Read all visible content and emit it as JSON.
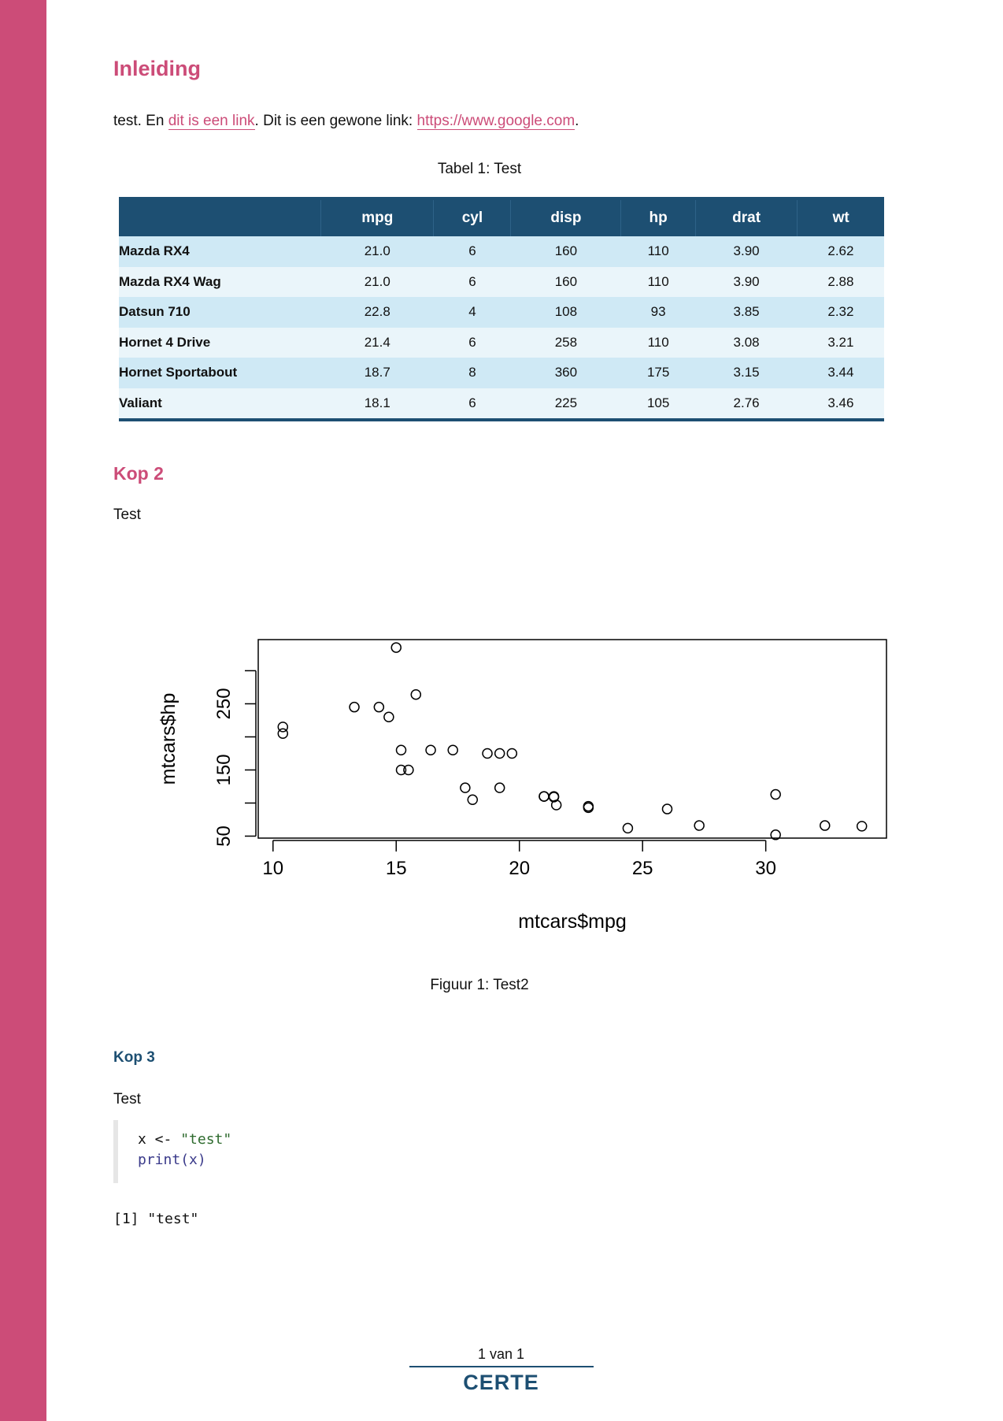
{
  "colors": {
    "accent": "#cc4c78",
    "navy": "#1d4f72",
    "row_light": "#cfe9f5",
    "row_alt": "#eaf5fa"
  },
  "intro": {
    "heading": "Inleiding",
    "text_before": "test. En ",
    "link1_text": "dit is een link",
    "text_middle": ". Dit is een gewone link: ",
    "link2_text": "https://www.google.com",
    "text_after": "."
  },
  "table": {
    "caption": "Tabel 1: Test",
    "headers": [
      "",
      "mpg",
      "cyl",
      "disp",
      "hp",
      "drat",
      "wt"
    ],
    "rows": [
      [
        "Mazda RX4",
        "21.0",
        "6",
        "160",
        "110",
        "3.90",
        "2.62"
      ],
      [
        "Mazda RX4 Wag",
        "21.0",
        "6",
        "160",
        "110",
        "3.90",
        "2.88"
      ],
      [
        "Datsun 710",
        "22.8",
        "4",
        "108",
        "93",
        "3.85",
        "2.32"
      ],
      [
        "Hornet 4 Drive",
        "21.4",
        "6",
        "258",
        "110",
        "3.08",
        "3.21"
      ],
      [
        "Hornet Sportabout",
        "18.7",
        "8",
        "360",
        "175",
        "3.15",
        "3.44"
      ],
      [
        "Valiant",
        "18.1",
        "6",
        "225",
        "105",
        "2.76",
        "3.46"
      ]
    ]
  },
  "kop2": {
    "heading": "Kop 2",
    "text": "Test"
  },
  "chart_data": {
    "type": "scatter",
    "xlabel": "mtcars$mpg",
    "ylabel": "mtcars$hp",
    "xlim": [
      9.4,
      34.9
    ],
    "ylim": [
      47,
      347
    ],
    "xticks": [
      10,
      15,
      20,
      25,
      30
    ],
    "yticks": [
      50,
      150,
      250
    ],
    "grid": false,
    "points": [
      [
        21.0,
        110
      ],
      [
        21.0,
        110
      ],
      [
        22.8,
        93
      ],
      [
        21.4,
        110
      ],
      [
        18.7,
        175
      ],
      [
        18.1,
        105
      ],
      [
        14.3,
        245
      ],
      [
        24.4,
        62
      ],
      [
        22.8,
        95
      ],
      [
        19.2,
        123
      ],
      [
        17.8,
        123
      ],
      [
        16.4,
        180
      ],
      [
        17.3,
        180
      ],
      [
        15.2,
        180
      ],
      [
        10.4,
        205
      ],
      [
        10.4,
        215
      ],
      [
        14.7,
        230
      ],
      [
        32.4,
        66
      ],
      [
        30.4,
        52
      ],
      [
        33.9,
        65
      ],
      [
        21.5,
        97
      ],
      [
        15.5,
        150
      ],
      [
        15.2,
        150
      ],
      [
        13.3,
        245
      ],
      [
        19.2,
        175
      ],
      [
        27.3,
        66
      ],
      [
        26.0,
        91
      ],
      [
        30.4,
        113
      ],
      [
        15.8,
        264
      ],
      [
        19.7,
        175
      ],
      [
        15.0,
        335
      ],
      [
        21.4,
        109
      ]
    ]
  },
  "figure": {
    "caption": "Figuur 1: Test2"
  },
  "kop3": {
    "heading": "Kop 3",
    "text": "Test"
  },
  "code": {
    "line1_var": "x <- ",
    "line1_str": "\"test\"",
    "line2_fn": "print",
    "line2_rest": "(x)",
    "output": "[1] \"test\""
  },
  "footer": {
    "page": "1 van 1",
    "logo": "CERTE"
  }
}
